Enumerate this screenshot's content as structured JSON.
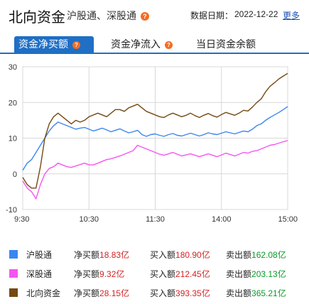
{
  "header": {
    "title": "北向资金",
    "subtitle": "沪股通、深股通",
    "help_icon": "?",
    "date_label": "数据日期：",
    "date_value": "2022-12-22",
    "more_link": "更多"
  },
  "tabs": [
    {
      "label": "资金净买额",
      "active": true,
      "has_help": true
    },
    {
      "label": "资金净流入",
      "active": false,
      "has_help": true
    },
    {
      "label": "当日资金余额",
      "active": false,
      "has_help": false
    }
  ],
  "chart_data": {
    "type": "line",
    "x_ticks": [
      "9:30",
      "10:30",
      "11:30",
      "14:00",
      "15:00"
    ],
    "ylim": [
      -10,
      30
    ],
    "y_ticks": [
      -10,
      0,
      10,
      20,
      30
    ],
    "grid": true,
    "series": [
      {
        "name": "沪股通",
        "color": "#3a86f0",
        "x": [
          0,
          4,
          8,
          12,
          16,
          20,
          24,
          28,
          32,
          36,
          40,
          44,
          48,
          52,
          56,
          60,
          64,
          68,
          72,
          76,
          80,
          84,
          88,
          92,
          96,
          100,
          104,
          108,
          112,
          116,
          120,
          124,
          128,
          132,
          136,
          140,
          144,
          148,
          152,
          156,
          160,
          164,
          168,
          172,
          176,
          180,
          184,
          188,
          192,
          196,
          200,
          204,
          208,
          212,
          216,
          220,
          224,
          228,
          232,
          236,
          240
        ],
        "values": [
          1,
          3,
          4,
          6,
          8,
          10,
          12,
          13.5,
          14.5,
          14,
          13.5,
          13,
          12.5,
          12.8,
          13,
          12.5,
          12,
          12.4,
          12.8,
          12.3,
          11.8,
          12.2,
          12.6,
          12,
          11.5,
          11.8,
          12.2,
          11,
          10.5,
          11,
          11.2,
          10.8,
          10.5,
          11,
          11.3,
          10.8,
          10.6,
          11,
          11.4,
          11,
          10.6,
          11,
          11.5,
          11.2,
          11,
          11.4,
          11.8,
          11.5,
          11.2,
          11.6,
          12,
          11.8,
          12.5,
          13.5,
          14,
          15,
          15.8,
          16.5,
          17.2,
          18,
          18.83
        ]
      },
      {
        "name": "深股通",
        "color": "#f556f0",
        "x": [
          0,
          4,
          8,
          12,
          16,
          20,
          24,
          28,
          32,
          36,
          40,
          44,
          48,
          52,
          56,
          60,
          64,
          68,
          72,
          76,
          80,
          84,
          88,
          92,
          96,
          100,
          104,
          108,
          112,
          116,
          120,
          124,
          128,
          132,
          136,
          140,
          144,
          148,
          152,
          156,
          160,
          164,
          168,
          172,
          176,
          180,
          184,
          188,
          192,
          196,
          200,
          204,
          208,
          212,
          216,
          220,
          224,
          228,
          232,
          236,
          240
        ],
        "values": [
          -2,
          -4,
          -5,
          -7,
          -3,
          0,
          1.5,
          2,
          3,
          2.5,
          2,
          1.8,
          2.2,
          2.6,
          3,
          2.5,
          2.5,
          3,
          3.5,
          4,
          4.2,
          4.6,
          5,
          5.5,
          6,
          6.5,
          8,
          7.5,
          7,
          6.5,
          6,
          5.5,
          5.2,
          5.6,
          6,
          5.5,
          5,
          5.3,
          5.6,
          5.2,
          4.8,
          5.2,
          5.6,
          5.2,
          4.8,
          5.3,
          5.8,
          5.4,
          5,
          5.5,
          6,
          5.8,
          6.3,
          6.5,
          7,
          7.5,
          8,
          8.2,
          8.6,
          9,
          9.32
        ]
      },
      {
        "name": "北向资金",
        "color": "#734a12",
        "x": [
          0,
          4,
          8,
          12,
          16,
          20,
          24,
          28,
          32,
          36,
          40,
          44,
          48,
          52,
          56,
          60,
          64,
          68,
          72,
          76,
          80,
          84,
          88,
          92,
          96,
          100,
          104,
          108,
          112,
          116,
          120,
          124,
          128,
          132,
          136,
          140,
          144,
          148,
          152,
          156,
          160,
          164,
          168,
          172,
          176,
          180,
          184,
          188,
          192,
          196,
          200,
          204,
          208,
          212,
          216,
          220,
          224,
          228,
          232,
          236,
          240
        ],
        "values": [
          -1,
          -3,
          -4,
          -4,
          2,
          10,
          14,
          16,
          17,
          16,
          15,
          14,
          15,
          14.5,
          15,
          16,
          16.5,
          17,
          16.5,
          16,
          17,
          18,
          18,
          17.5,
          18.5,
          19,
          19.5,
          18.5,
          17.5,
          17,
          16.5,
          16,
          15.8,
          16.5,
          17,
          16.5,
          16,
          16.4,
          17,
          16.3,
          15.8,
          16.4,
          16.9,
          16.3,
          15.9,
          16.6,
          17.2,
          16.8,
          16.4,
          17,
          17.8,
          17.6,
          18.7,
          20,
          21,
          23,
          24.5,
          25.5,
          26.6,
          27.4,
          28.15
        ]
      }
    ]
  },
  "legend": [
    {
      "name": "沪股通",
      "color": "#3a86f0",
      "net_label": "净买额",
      "net_value": "18.83亿",
      "buy_label": "买入额",
      "buy_value": "180.90亿",
      "sell_label": "卖出额",
      "sell_value": "162.08亿"
    },
    {
      "name": "深股通",
      "color": "#f556f0",
      "net_label": "净买额",
      "net_value": "9.32亿",
      "buy_label": "买入额",
      "buy_value": "212.45亿",
      "sell_label": "卖出额",
      "sell_value": "203.13亿"
    },
    {
      "name": "北向资金",
      "color": "#734a12",
      "net_label": "净买额",
      "net_value": "28.15亿",
      "buy_label": "买入额",
      "buy_value": "393.35亿",
      "sell_label": "卖出额",
      "sell_value": "365.21亿"
    }
  ]
}
